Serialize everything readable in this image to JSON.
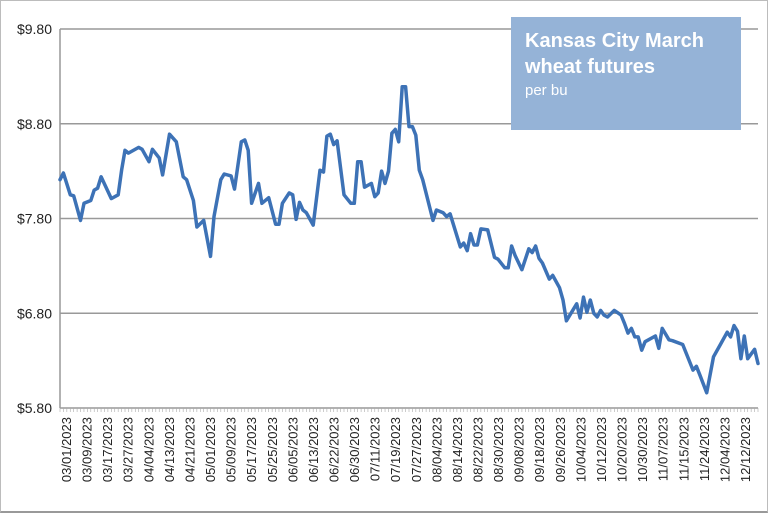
{
  "chart_data": {
    "type": "line",
    "title": "Kansas City March wheat futures",
    "subtitle": "per bu",
    "xlabel": "",
    "ylabel": "",
    "ylim": [
      5.8,
      9.8
    ],
    "xlim": [
      0,
      204
    ],
    "yticks": [
      {
        "value": 9.8,
        "label": "$9.80"
      },
      {
        "value": 8.8,
        "label": "$8.80"
      },
      {
        "value": 7.8,
        "label": "$7.80"
      },
      {
        "value": 6.8,
        "label": "$6.80"
      },
      {
        "value": 5.8,
        "label": "$5.80"
      }
    ],
    "xtick_labels": [
      "03/01/2023",
      "03/09/2023",
      "03/17/2023",
      "03/27/2023",
      "04/04/2023",
      "04/13/2023",
      "04/21/2023",
      "05/01/2023",
      "05/09/2023",
      "05/17/2023",
      "05/25/2023",
      "06/05/2023",
      "06/13/2023",
      "06/22/2023",
      "06/30/2023",
      "07/11/2023",
      "07/19/2023",
      "07/27/2023",
      "08/04/2023",
      "08/14/2023",
      "08/22/2023",
      "08/30/2023",
      "09/08/2023",
      "09/18/2023",
      "09/26/2023",
      "10/04/2023",
      "10/12/2023",
      "10/20/2023",
      "10/30/2023",
      "11/07/2023",
      "11/15/2023",
      "11/24/2023",
      "12/04/2023",
      "12/12/2023"
    ],
    "grid": true,
    "series": [
      {
        "name": "Kansas City March wheat futures",
        "color": "#3d72b6",
        "points": [
          [
            0,
            8.21
          ],
          [
            1,
            8.28
          ],
          [
            3,
            8.05
          ],
          [
            4,
            8.04
          ],
          [
            6,
            7.78
          ],
          [
            7,
            7.96
          ],
          [
            9,
            7.99
          ],
          [
            10,
            8.1
          ],
          [
            11,
            8.12
          ],
          [
            12,
            8.24
          ],
          [
            15,
            8.01
          ],
          [
            17,
            8.05
          ],
          [
            18,
            8.31
          ],
          [
            19,
            8.52
          ],
          [
            20,
            8.49
          ],
          [
            23,
            8.55
          ],
          [
            24,
            8.53
          ],
          [
            26,
            8.4
          ],
          [
            27,
            8.53
          ],
          [
            29,
            8.44
          ],
          [
            30,
            8.26
          ],
          [
            32,
            8.69
          ],
          [
            34,
            8.61
          ],
          [
            36,
            8.24
          ],
          [
            37,
            8.21
          ],
          [
            39,
            7.99
          ],
          [
            40,
            7.71
          ],
          [
            42,
            7.78
          ],
          [
            44,
            7.4
          ],
          [
            45,
            7.82
          ],
          [
            47,
            8.21
          ],
          [
            48,
            8.27
          ],
          [
            50,
            8.25
          ],
          [
            51,
            8.11
          ],
          [
            53,
            8.61
          ],
          [
            54,
            8.63
          ],
          [
            55,
            8.52
          ],
          [
            56,
            7.96
          ],
          [
            58,
            8.17
          ],
          [
            59,
            7.96
          ],
          [
            61,
            8.02
          ],
          [
            63,
            7.74
          ],
          [
            64,
            7.74
          ],
          [
            65,
            7.96
          ],
          [
            67,
            8.07
          ],
          [
            68,
            8.05
          ],
          [
            69,
            7.79
          ],
          [
            70,
            7.97
          ],
          [
            71,
            7.89
          ],
          [
            72,
            7.86
          ],
          [
            74,
            7.73
          ],
          [
            76,
            8.31
          ],
          [
            77,
            8.29
          ],
          [
            78,
            8.67
          ],
          [
            79,
            8.69
          ],
          [
            80,
            8.58
          ],
          [
            81,
            8.62
          ],
          [
            83,
            8.05
          ],
          [
            85,
            7.96
          ],
          [
            86,
            7.96
          ],
          [
            87,
            8.4
          ],
          [
            88,
            8.4
          ],
          [
            89,
            8.13
          ],
          [
            91,
            8.17
          ],
          [
            92,
            8.03
          ],
          [
            93,
            8.07
          ],
          [
            94,
            8.3
          ],
          [
            95,
            8.17
          ],
          [
            96,
            8.3
          ],
          [
            97,
            8.7
          ],
          [
            98,
            8.74
          ],
          [
            99,
            8.61
          ],
          [
            100,
            9.19
          ],
          [
            101,
            9.19
          ],
          [
            102,
            8.77
          ],
          [
            103,
            8.77
          ],
          [
            104,
            8.68
          ],
          [
            105,
            8.31
          ],
          [
            106,
            8.21
          ],
          [
            109,
            7.78
          ],
          [
            110,
            7.89
          ],
          [
            112,
            7.86
          ],
          [
            113,
            7.82
          ],
          [
            114,
            7.85
          ],
          [
            117,
            7.5
          ],
          [
            118,
            7.54
          ],
          [
            119,
            7.46
          ],
          [
            120,
            7.64
          ],
          [
            121,
            7.52
          ],
          [
            122,
            7.52
          ],
          [
            123,
            7.69
          ],
          [
            125,
            7.68
          ],
          [
            127,
            7.39
          ],
          [
            128,
            7.37
          ],
          [
            130,
            7.28
          ],
          [
            131,
            7.28
          ],
          [
            132,
            7.51
          ],
          [
            133,
            7.41
          ],
          [
            135,
            7.26
          ],
          [
            137,
            7.48
          ],
          [
            138,
            7.44
          ],
          [
            139,
            7.51
          ],
          [
            140,
            7.38
          ],
          [
            141,
            7.33
          ],
          [
            143,
            7.16
          ],
          [
            144,
            7.2
          ],
          [
            146,
            7.07
          ],
          [
            147,
            6.94
          ],
          [
            148,
            6.72
          ],
          [
            151,
            6.9
          ],
          [
            152,
            6.75
          ],
          [
            153,
            6.97
          ],
          [
            154,
            6.81
          ],
          [
            155,
            6.94
          ],
          [
            156,
            6.8
          ],
          [
            157,
            6.76
          ],
          [
            158,
            6.83
          ],
          [
            159,
            6.78
          ],
          [
            160,
            6.76
          ],
          [
            162,
            6.83
          ],
          [
            164,
            6.78
          ],
          [
            165,
            6.69
          ],
          [
            166,
            6.59
          ],
          [
            167,
            6.64
          ],
          [
            168,
            6.55
          ],
          [
            169,
            6.55
          ],
          [
            170,
            6.41
          ],
          [
            171,
            6.5
          ],
          [
            174,
            6.56
          ],
          [
            175,
            6.43
          ],
          [
            176,
            6.64
          ],
          [
            178,
            6.52
          ],
          [
            179,
            6.51
          ],
          [
            182,
            6.47
          ],
          [
            185,
            6.2
          ],
          [
            186,
            6.24
          ],
          [
            187,
            6.15
          ],
          [
            189,
            5.96
          ],
          [
            191,
            6.34
          ],
          [
            193,
            6.47
          ],
          [
            195,
            6.6
          ],
          [
            196,
            6.55
          ],
          [
            197,
            6.67
          ],
          [
            198,
            6.61
          ],
          [
            199,
            6.32
          ],
          [
            200,
            6.56
          ],
          [
            201,
            6.32
          ],
          [
            203,
            6.42
          ],
          [
            204,
            6.27
          ]
        ]
      }
    ],
    "legend": "none"
  }
}
